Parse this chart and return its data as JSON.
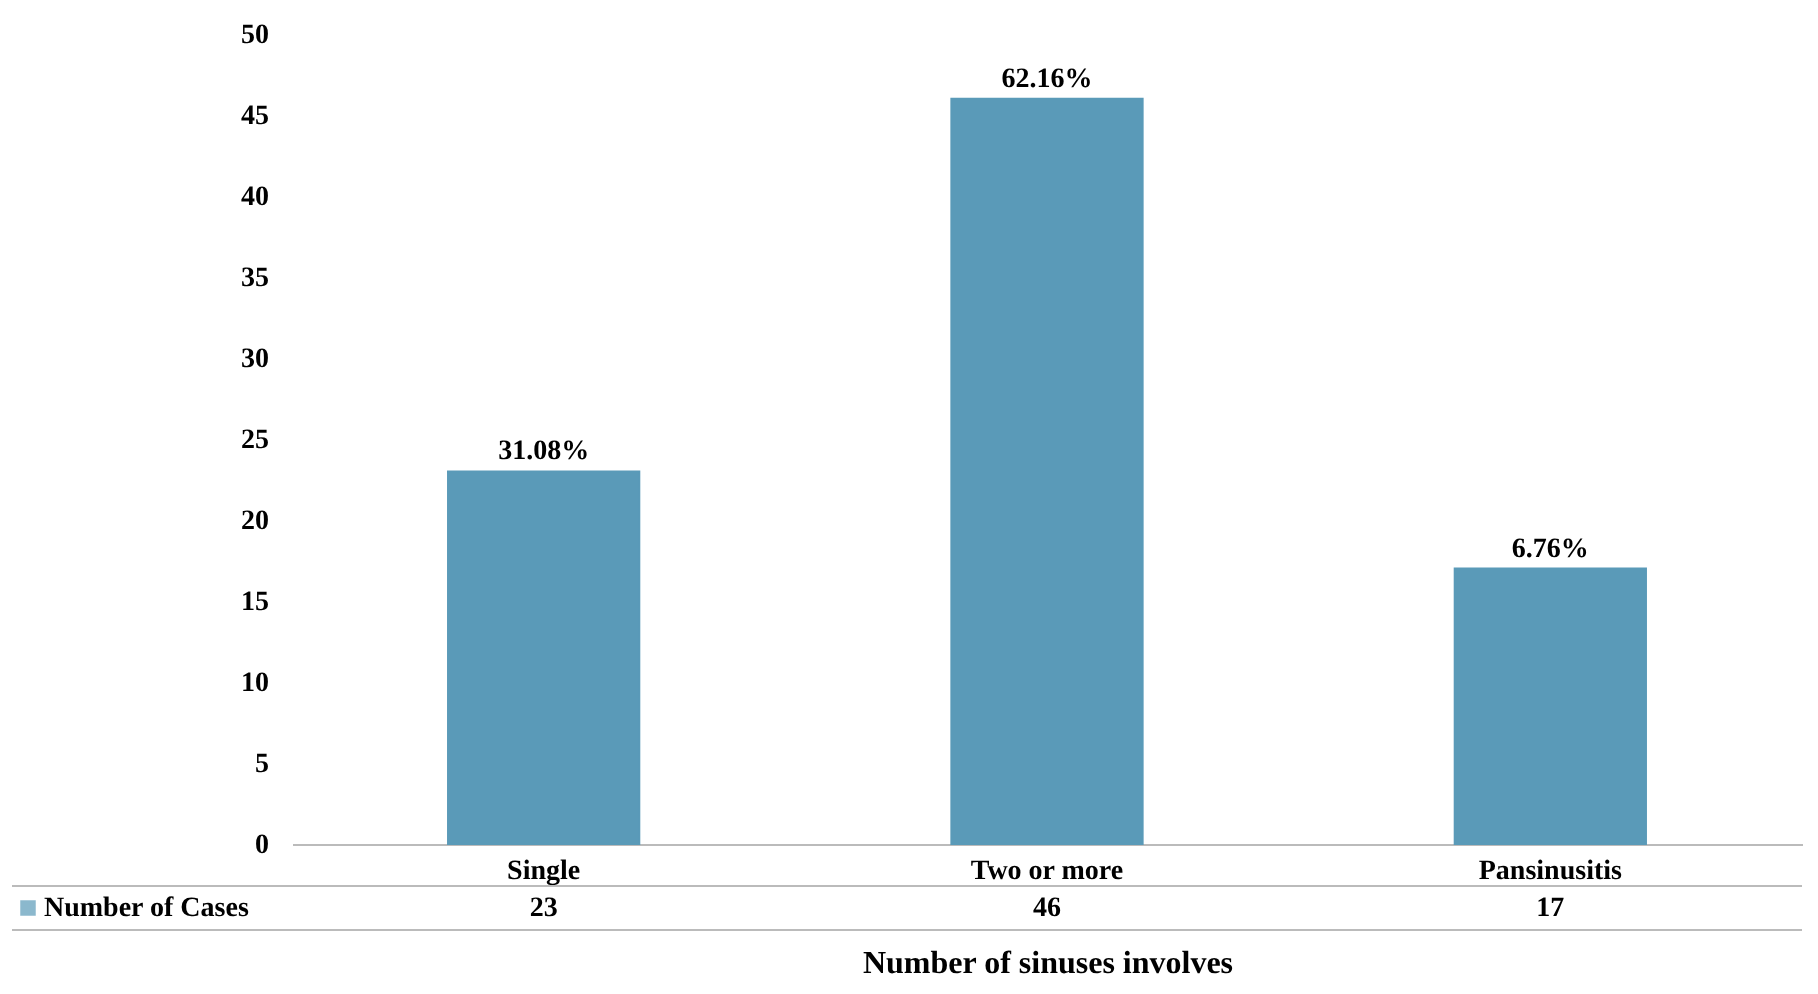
{
  "chart_data": {
    "type": "bar",
    "xlabel": "Number of sinuses involves",
    "categories": [
      "Single",
      "Two or more",
      "Pansinusitis"
    ],
    "series": [
      {
        "name": "Number of Cases",
        "color": "#5a9ab8",
        "values": [
          23,
          46,
          17
        ]
      }
    ],
    "annotations": [
      {
        "text": "31.08%",
        "x": "Single",
        "y": 23
      },
      {
        "text": "62.16%",
        "x": "Two or more",
        "y": 46
      },
      {
        "text": "6.76%",
        "x": "Pansinusitis",
        "y": 17
      }
    ],
    "ylim": [
      0,
      50
    ],
    "yticks": [
      0,
      5,
      10,
      15,
      20,
      25,
      30,
      35,
      40,
      45,
      50
    ],
    "grid": false,
    "legend": "bottom",
    "data_labels": true
  }
}
